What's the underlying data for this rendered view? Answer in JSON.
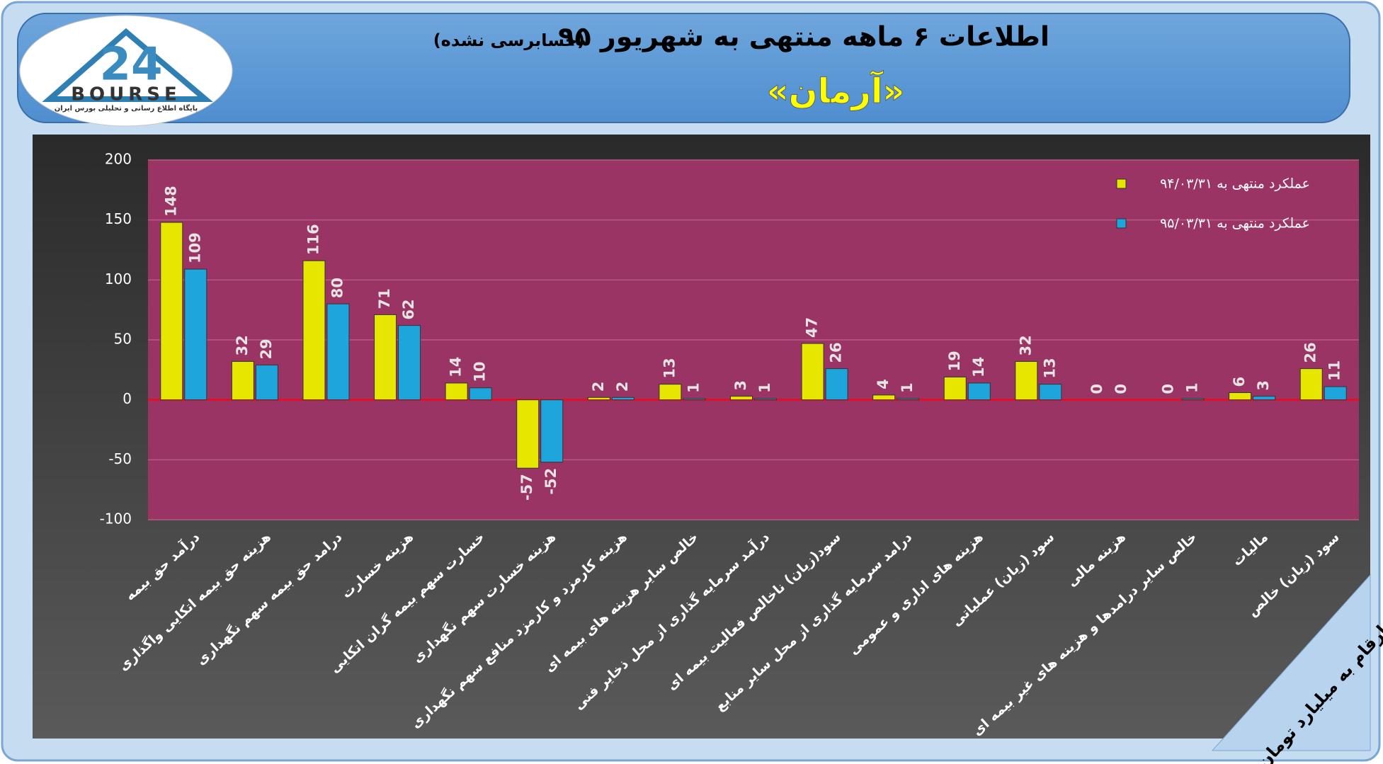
{
  "header": {
    "logo_number": "24",
    "logo_word": "BOURSE",
    "logo_caption": "پایگاه اطلاع رسانی و تحلیلی بورس ایران"
  },
  "chart_data": {
    "type": "bar",
    "title": "اطلاعات ۶ ماهه منتهی به شهریور ۹۵",
    "subtitle": "(حسابرسی نشده)",
    "company": "«آرمان»",
    "note": "ارقام به میلیارد تومان",
    "categories": [
      "درآمد حق بیمه",
      "هزینه حق بیمه اتکایی واگذاری",
      "درامد حق بیمه سهم نگهداری",
      "هزینه خسارت",
      "خسارت سهم بیمه گران اتکایی",
      "هزینه خسارت سهم نگهداری",
      "هزینه کارمزد و کارمزد منافع سهم نگهداری",
      "خالص سایر هزینه های بیمه ای",
      "درآمد سرمایه گذاری از محل ذخایر فنی",
      "سود(زیان) ناخالص فعالیت بیمه ای",
      "درامد سرمایه گذاری از محل سایر منابع",
      "هزینه های اداری و عمومی",
      "سود (زیان) عملیاتی",
      "هزینه مالی",
      "خالص سایر درامدها و هزینه های غیر بیمه ای",
      "مالیات",
      "سود (زیان) خالص"
    ],
    "series": [
      {
        "name": "عملکرد منتهی به ۹۴/۰۳/۳۱",
        "color": "#e6e600",
        "values": [
          148,
          32,
          116,
          71,
          14,
          -57,
          2,
          13,
          3,
          47,
          4,
          19,
          32,
          0,
          0,
          6,
          26
        ]
      },
      {
        "name": "عملکرد منتهی به ۹۵/۰۳/۳۱",
        "color": "#1ea6dc",
        "values": [
          109,
          29,
          80,
          62,
          10,
          -52,
          2,
          1,
          1,
          26,
          1,
          14,
          13,
          0,
          1,
          3,
          11
        ]
      }
    ],
    "ylim": [
      -100,
      200
    ],
    "yticks": [
      -100,
      -50,
      0,
      50,
      100,
      150,
      200
    ],
    "grid": true,
    "legend": "top-right",
    "zero_line_color": "#e0102a"
  }
}
